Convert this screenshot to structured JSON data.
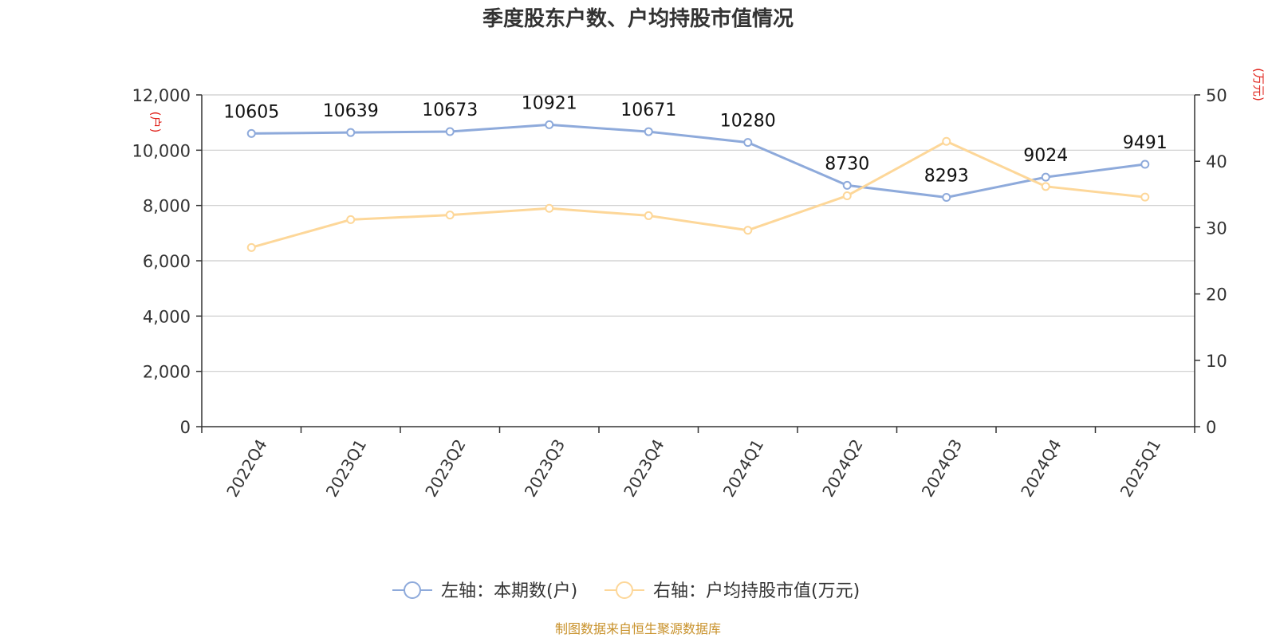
{
  "chart_data": {
    "type": "line",
    "title": "季度股东户数、户均持股市值情况",
    "categories": [
      "2022Q4",
      "2023Q1",
      "2023Q2",
      "2023Q3",
      "2023Q4",
      "2024Q1",
      "2024Q2",
      "2024Q3",
      "2024Q4",
      "2025Q1"
    ],
    "y_left": {
      "unit": "(户)",
      "ylim": [
        0,
        12000
      ],
      "ticks": [
        "0",
        "2,000",
        "4,000",
        "6,000",
        "8,000",
        "10,000",
        "12,000"
      ]
    },
    "y_right": {
      "unit": "(万元)",
      "ylim": [
        0,
        50
      ],
      "ticks": [
        "0",
        "10",
        "20",
        "30",
        "40",
        "50"
      ]
    },
    "grid": true,
    "legend_position": "bottom-center",
    "series": [
      {
        "name": "左轴：本期数(户)",
        "axis": "left",
        "color": "#8eaadb",
        "values": [
          10605,
          10639,
          10673,
          10921,
          10671,
          10280,
          8730,
          8293,
          9024,
          9491
        ],
        "labels": [
          "10605",
          "10639",
          "10673",
          "10921",
          "10671",
          "10280",
          "8730",
          "8293",
          "9024",
          "9491"
        ]
      },
      {
        "name": "右轴：户均持股市值(万元)",
        "axis": "right",
        "color": "#fdd799",
        "values": [
          27.0,
          31.2,
          31.9,
          32.9,
          31.8,
          29.6,
          34.8,
          43.0,
          36.2,
          34.6
        ]
      }
    ],
    "source": "制图数据来自恒生聚源数据库"
  }
}
